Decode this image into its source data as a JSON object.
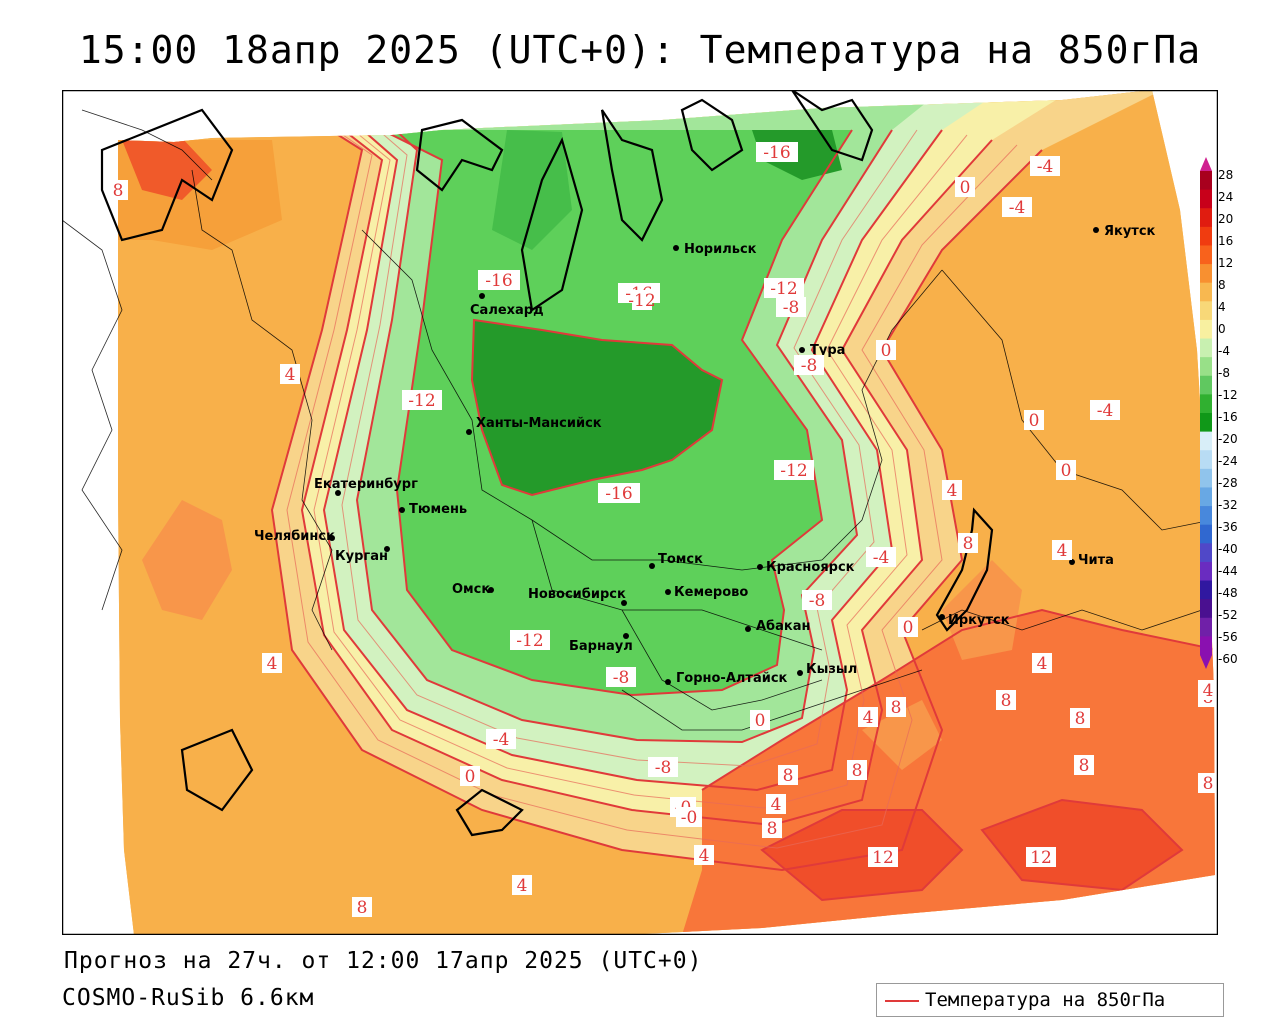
{
  "title": "15:00 18апр 2025 (UTC+0): Температура на 850гПа",
  "forecast_note": "Прогноз на 27ч. от 12:00 17апр 2025 (UTC+0)",
  "model_note": "COSMO-RuSib 6.6км",
  "legend_label": "Температура на 850гПа",
  "colors": {
    "contour": "#e03a3a",
    "border": "#000000"
  },
  "cities": [
    {
      "name": "Салехард"
    },
    {
      "name": "Норильск"
    },
    {
      "name": "Якутск"
    },
    {
      "name": "Тура"
    },
    {
      "name": "Ханты-Мансийск"
    },
    {
      "name": "Екатеринбург"
    },
    {
      "name": "Тюмень"
    },
    {
      "name": "Челябинск"
    },
    {
      "name": "Курган"
    },
    {
      "name": "Омск"
    },
    {
      "name": "Новосибирск"
    },
    {
      "name": "Томск"
    },
    {
      "name": "Кемерово"
    },
    {
      "name": "Красноярск"
    },
    {
      "name": "Абакан"
    },
    {
      "name": "Барнаул"
    },
    {
      "name": "Горно-Алтайск"
    },
    {
      "name": "Кызыл"
    },
    {
      "name": "Иркутск"
    },
    {
      "name": "Чита"
    }
  ],
  "contour_labels": [
    "-16",
    "-16",
    "-16",
    "-16",
    "-12",
    "-12",
    "-12",
    "-12",
    "-12",
    "-8",
    "-8",
    "-8",
    "-8",
    "-8",
    "-4",
    "-4",
    "-4",
    "-4",
    "-4",
    "0",
    "0",
    "0",
    "0",
    "0",
    "0",
    "0",
    "-0",
    "-0",
    "4",
    "4",
    "4",
    "4",
    "4",
    "4",
    "4",
    "4",
    "4",
    "8",
    "8",
    "8",
    "8",
    "8",
    "8",
    "8",
    "8",
    "8",
    "8",
    "8",
    "8",
    "12",
    "12"
  ],
  "colorbar": {
    "ticks": [
      "28",
      "24",
      "20",
      "16",
      "12",
      "8",
      "4",
      "0",
      "-4",
      "-8",
      "-12",
      "-16",
      "-20",
      "-24",
      "-28",
      "-32",
      "-36",
      "-40",
      "-44",
      "-48",
      "-52",
      "-56",
      "-60"
    ],
    "colors": [
      "#a8001e",
      "#c8001a",
      "#e01c10",
      "#f03c10",
      "#f8621c",
      "#f89030",
      "#f8b850",
      "#f8d878",
      "#f8f0a0",
      "#c8f0b0",
      "#98e088",
      "#60c860",
      "#30b030",
      "#109818",
      "#d8eef8",
      "#b8dcf4",
      "#90c4ec",
      "#68a8e4",
      "#4888dc",
      "#3068d0",
      "#5048c8",
      "#6a2cc0",
      "#3018a0",
      "#4a1090",
      "#7020a8",
      "#8a10b0"
    ]
  }
}
